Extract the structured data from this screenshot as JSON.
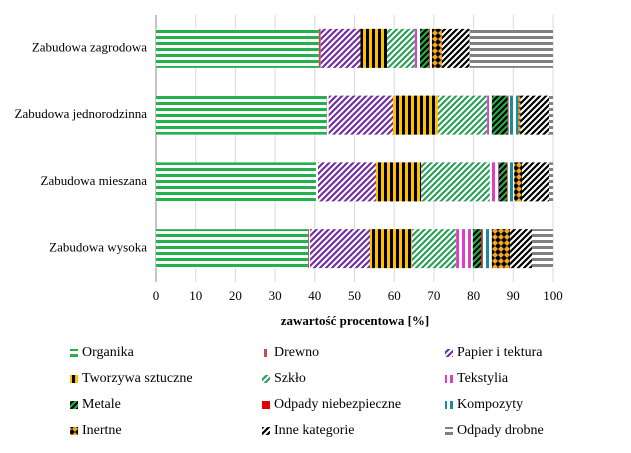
{
  "chart_data": {
    "type": "stacked-barh",
    "x_label": "zawartość procentowa [%]",
    "categories": [
      "Zabudowa zagrodowa",
      "Zabudowa jednorodzinna",
      "Zabudowa mieszana",
      "Zabudowa wysoka"
    ],
    "xlim": [
      0,
      100
    ],
    "xticks": [
      0,
      10,
      20,
      30,
      40,
      50,
      60,
      70,
      80,
      90,
      100
    ],
    "grid": true,
    "series": [
      {
        "name": "Organika",
        "color": "#22b14c",
        "pattern": "horizontal",
        "values": [
          41,
          43,
          40.3,
          38.3
        ]
      },
      {
        "name": "Drewno",
        "color": "#c0504d",
        "pattern": "vertical",
        "values": [
          0.5,
          0.5,
          0.5,
          0.5
        ]
      },
      {
        "name": "Papier i tektura",
        "color": "#7030a0",
        "pattern": "diagonal",
        "values": [
          10,
          16.2,
          14.6,
          15.1
        ]
      },
      {
        "name": "Tworzywa sztuczne",
        "color": "#ffc000",
        "stripe": "#000000",
        "pattern": "vertical",
        "values": [
          6.7,
          11.3,
          11.4,
          10.6
        ]
      },
      {
        "name": "Szkło",
        "color": "#2e9e5b",
        "pattern": "diagonal",
        "values": [
          7,
          12.4,
          17.3,
          11.1
        ]
      },
      {
        "name": "Tekstylia",
        "color": "#e03cc8",
        "pattern": "vertical",
        "values": [
          1.3,
          1.2,
          2.3,
          4.2
        ]
      },
      {
        "name": "Metale",
        "color": "#22b14c",
        "stripe": "#000000",
        "pattern": "diagonal",
        "values": [
          2.3,
          4,
          2,
          2.1
        ]
      },
      {
        "name": "Odpady niebezpieczne",
        "color": "#e00000",
        "pattern": "solid",
        "values": [
          0.2,
          0.2,
          0.2,
          0.3
        ]
      },
      {
        "name": "Kompozyty",
        "color": "#1b8a9a",
        "pattern": "vertical",
        "values": [
          0.5,
          2.5,
          1.6,
          2.4
        ]
      },
      {
        "name": "Inertne",
        "color": "#f5a623",
        "stripe": "#000000",
        "pattern": "diamond",
        "values": [
          2.5,
          0.5,
          2,
          4.6
        ]
      },
      {
        "name": "Inne kategorie",
        "color": "#000000",
        "pattern": "diagonal",
        "values": [
          7,
          7.2,
          6.8,
          5.5
        ]
      },
      {
        "name": "Odpady drobne",
        "color": "#808080",
        "pattern": "horizontal",
        "values": [
          21,
          1,
          1,
          5.3
        ]
      }
    ]
  }
}
